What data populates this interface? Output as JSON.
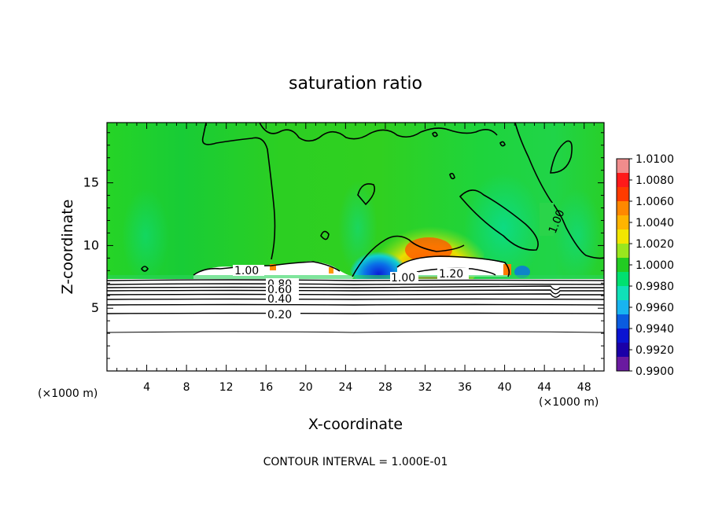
{
  "chart_data": {
    "type": "heatmap",
    "title": "saturation ratio",
    "xlabel": "X-coordinate",
    "ylabel": "Z-coordinate",
    "x_unit_left": "(×1000 m)",
    "x_unit_right": "(×1000 m)",
    "footer": "CONTOUR INTERVAL = 1.000E-01",
    "xlim": [
      0,
      50
    ],
    "ylim": [
      0,
      19.8
    ],
    "x_ticks": [
      "4",
      "8",
      "12",
      "16",
      "20",
      "24",
      "28",
      "32",
      "36",
      "40",
      "44",
      "48"
    ],
    "y_ticks": [
      "5",
      "10",
      "15"
    ],
    "grid": false,
    "legend": "right",
    "colorbar": {
      "labels": [
        "1.0100",
        "1.0080",
        "1.0060",
        "1.0040",
        "1.0020",
        "1.0000",
        "0.9980",
        "0.9960",
        "0.9940",
        "0.9920",
        "0.9900"
      ],
      "colors": [
        "#f08c8c",
        "#ff1a1a",
        "#ff3b00",
        "#ff8800",
        "#ffb400",
        "#f2e600",
        "#9ae61e",
        "#22cc22",
        "#00e070",
        "#10e0b8",
        "#18b4f0",
        "#0a5ce0",
        "#0a14d2",
        "#1a00a8",
        "#6a1aa0"
      ]
    },
    "contour_labels": [
      "1.00",
      "1.00",
      "1.00",
      "1.20",
      "0.80",
      "0.60",
      "0.40",
      "0.20"
    ],
    "contour_levels": [
      0.2,
      0.4,
      0.6,
      0.8,
      1.0,
      1.2
    ]
  }
}
